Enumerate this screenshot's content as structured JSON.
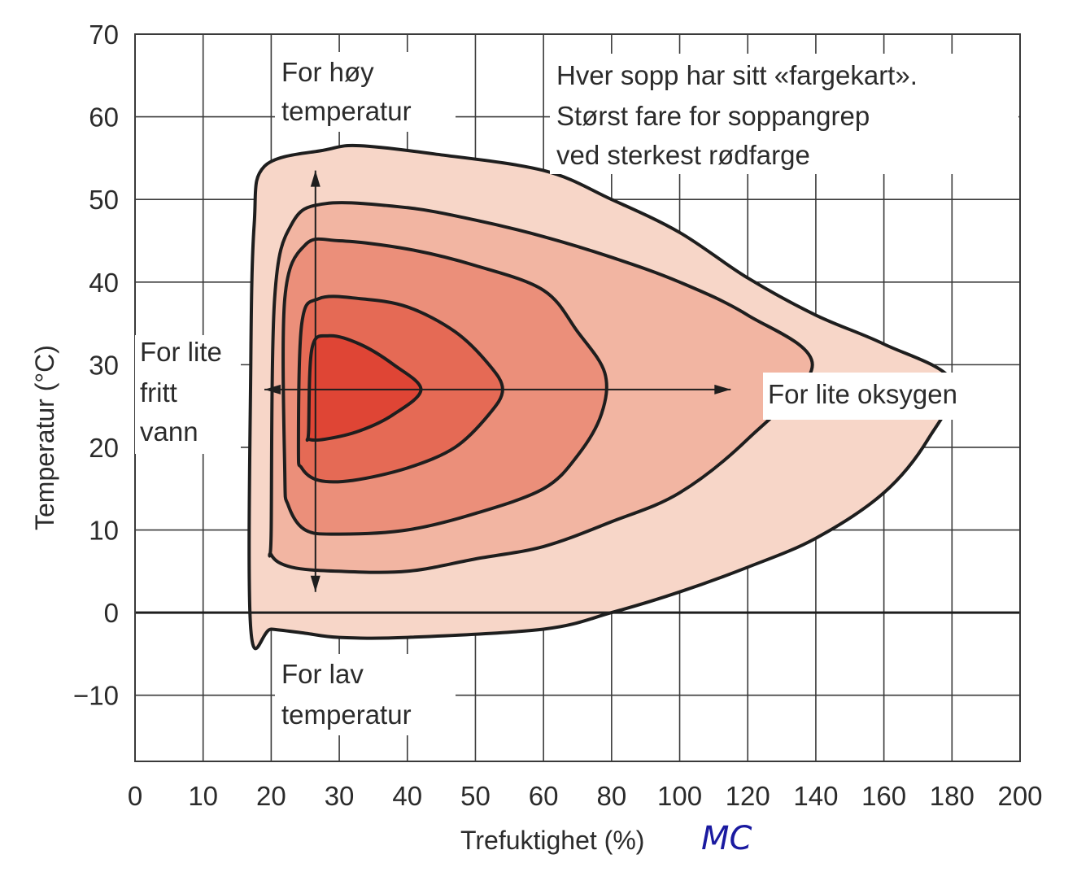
{
  "chart_data": {
    "type": "contour",
    "title": "",
    "xlabel": "Trefuktighet (%)",
    "xlabel_suffix": "MC",
    "ylabel": "Temperatur (°C)",
    "x_ticks": [
      "0",
      "10",
      "20",
      "30",
      "40",
      "50",
      "60",
      "80",
      "100",
      "120",
      "140",
      "160",
      "180",
      "200"
    ],
    "y_ticks": [
      "70",
      "60",
      "50",
      "40",
      "30",
      "20",
      "10",
      "0",
      "−10"
    ],
    "ylim": [
      -18,
      70
    ],
    "grid": true,
    "colors": [
      "#f7d6c8",
      "#f2b5a2",
      "#eb8f7a",
      "#e56a55",
      "#df4535"
    ],
    "levels": [
      {
        "name": "level-1",
        "points": [
          [
            17,
            -2
          ],
          [
            17,
            30
          ],
          [
            17.5,
            47
          ],
          [
            19,
            54
          ],
          [
            28,
            56
          ],
          [
            33,
            56.5
          ],
          [
            44,
            55.5
          ],
          [
            60,
            53.5
          ],
          [
            80,
            50
          ],
          [
            100,
            46
          ],
          [
            120,
            40.5
          ],
          [
            140,
            36
          ],
          [
            160,
            32.5
          ],
          [
            180,
            28
          ],
          [
            173,
            21
          ],
          [
            160,
            14.5
          ],
          [
            140,
            9
          ],
          [
            120,
            5.5
          ],
          [
            100,
            2.5
          ],
          [
            80,
            0
          ],
          [
            60,
            -2
          ],
          [
            40,
            -3
          ],
          [
            30,
            -3
          ],
          [
            25,
            -2.5
          ],
          [
            20,
            -2
          ]
        ]
      },
      {
        "name": "level-2",
        "points": [
          [
            20,
            10
          ],
          [
            20.5,
            38
          ],
          [
            23,
            47
          ],
          [
            28,
            49.5
          ],
          [
            40,
            49
          ],
          [
            50,
            47.5
          ],
          [
            60,
            45.5
          ],
          [
            80,
            43
          ],
          [
            100,
            40
          ],
          [
            120,
            36
          ],
          [
            139,
            30
          ],
          [
            120,
            21
          ],
          [
            100,
            14.5
          ],
          [
            80,
            11
          ],
          [
            60,
            8
          ],
          [
            50,
            6.5
          ],
          [
            40,
            5
          ],
          [
            30,
            5
          ],
          [
            23,
            5.5
          ],
          [
            20,
            7
          ]
        ]
      },
      {
        "name": "level-3",
        "points": [
          [
            22,
            17
          ],
          [
            22,
            38
          ],
          [
            25,
            44.5
          ],
          [
            30,
            45
          ],
          [
            40,
            44
          ],
          [
            50,
            42
          ],
          [
            60,
            39
          ],
          [
            70,
            34
          ],
          [
            78,
            29
          ],
          [
            77,
            24
          ],
          [
            70,
            19
          ],
          [
            60,
            15
          ],
          [
            50,
            12
          ],
          [
            40,
            10
          ],
          [
            30,
            9.5
          ],
          [
            25,
            10
          ],
          [
            22.5,
            13
          ]
        ]
      },
      {
        "name": "level-4",
        "points": [
          [
            24,
            20
          ],
          [
            24.5,
            35
          ],
          [
            27,
            38
          ],
          [
            33,
            38
          ],
          [
            40,
            37
          ],
          [
            47,
            34
          ],
          [
            52,
            30
          ],
          [
            54,
            27
          ],
          [
            52,
            24
          ],
          [
            47,
            20
          ],
          [
            40,
            17.5
          ],
          [
            32,
            16
          ],
          [
            27,
            16
          ],
          [
            24.5,
            17.5
          ]
        ]
      },
      {
        "name": "level-5",
        "points": [
          [
            25.5,
            22
          ],
          [
            26,
            32
          ],
          [
            28.5,
            33.5
          ],
          [
            33,
            32.5
          ],
          [
            38,
            30
          ],
          [
            42,
            27
          ],
          [
            38,
            24
          ],
          [
            33,
            22
          ],
          [
            28,
            21
          ],
          [
            25.5,
            21
          ]
        ]
      }
    ],
    "zero_line_y": 0,
    "arrows": [
      {
        "name": "arrow-up",
        "from": [
          26.5,
          29
        ],
        "to": [
          26.5,
          53.5
        ]
      },
      {
        "name": "arrow-down",
        "from": [
          26.5,
          29
        ],
        "to": [
          26.5,
          2.5
        ]
      },
      {
        "name": "arrow-right",
        "from": [
          26.5,
          27
        ],
        "to": [
          115,
          27
        ]
      },
      {
        "name": "arrow-left",
        "from": [
          26.5,
          27
        ],
        "to": [
          19,
          27
        ]
      }
    ],
    "annotations": {
      "high_temp": [
        "For høy",
        "temperatur"
      ],
      "low_temp": [
        "For lav",
        "temperatur"
      ],
      "little_water": [
        "For lite",
        "fritt",
        "vann"
      ],
      "little_oxygen": "For lite oksygen",
      "note": [
        "Hver sopp har sitt «fargekart».",
        "Størst fare for soppangrep",
        "ved sterkest rødfarge"
      ]
    }
  }
}
